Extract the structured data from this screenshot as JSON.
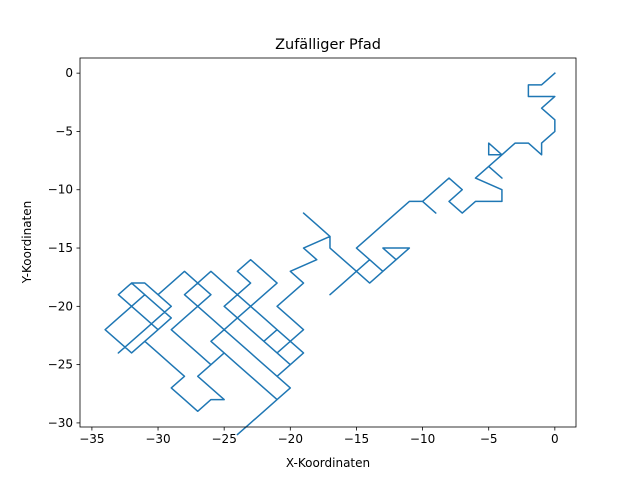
{
  "chart_data": {
    "type": "line",
    "title": "Zufälliger Pfad",
    "xlabel": "X-Koordinaten",
    "ylabel": "Y-Koordinaten",
    "xlim": [
      -35.9,
      1.6
    ],
    "ylim": [
      -30.35,
      1.3
    ],
    "xticks": [
      -35,
      -30,
      -25,
      -20,
      -15,
      -10,
      -5,
      0
    ],
    "yticks": [
      0,
      -5,
      -10,
      -15,
      -20,
      -25,
      -30
    ],
    "grid": false,
    "line_color": "#1f77b4",
    "series": [
      {
        "x": [
          0,
          -1,
          -2,
          -2,
          0,
          -1,
          0,
          0,
          -1,
          -1,
          -2,
          -3,
          -4,
          -5,
          -5,
          -4,
          -5,
          -4,
          -5,
          -6,
          -4,
          -4,
          -6,
          -7,
          -8,
          -7,
          -8,
          -9,
          -10,
          -9,
          -10,
          -11,
          -12,
          -13,
          -14,
          -15,
          -14,
          -13,
          -12,
          -11,
          -13,
          -12,
          -13,
          -14,
          -15,
          -14,
          -15,
          -16,
          -17,
          -16,
          -15,
          -16,
          -17,
          -17,
          -18,
          -19,
          -18,
          -17,
          -19,
          -18,
          -20,
          -19,
          -20,
          -21,
          -20,
          -19,
          -20,
          -21,
          -22,
          -21,
          -22,
          -23,
          -22,
          -21,
          -22,
          -23,
          -24,
          -23,
          -24,
          -25,
          -24,
          -23,
          -22,
          -21,
          -20,
          -21,
          -22,
          -23,
          -24,
          -25,
          -24,
          -23,
          -24,
          -25,
          -26,
          -27,
          -28,
          -27,
          -26,
          -25,
          -26,
          -25,
          -26,
          -27,
          -28,
          -29,
          -28,
          -27,
          -26,
          -27,
          -28,
          -29,
          -30,
          -29,
          -30,
          -31,
          -32,
          -33,
          -32,
          -31,
          -30,
          -29,
          -30,
          -31,
          -32,
          -33,
          -32,
          -31,
          -30,
          -31,
          -32,
          -33,
          -34,
          -33,
          -32,
          -31,
          -32,
          -31,
          -30,
          -29,
          -30,
          -31,
          -30,
          -29,
          -28,
          -29,
          -28,
          -27,
          -26,
          -25,
          -26,
          -27,
          -26,
          -25,
          -24,
          -23,
          -22,
          -21,
          -22,
          -23,
          -24,
          -23,
          -22,
          -21,
          -20,
          -21,
          -20,
          -19,
          -20,
          -21,
          -22,
          -23,
          -24,
          -25
        ],
        "y": [
          0,
          -1,
          -1,
          -2,
          -2,
          -3,
          -4,
          -5,
          -6,
          -7,
          -6,
          -6,
          -7,
          -6,
          -7,
          -7,
          -8,
          -9,
          -8,
          -9,
          -10,
          -11,
          -11,
          -12,
          -11,
          -10,
          -9,
          -10,
          -11,
          -12,
          -11,
          -11,
          -12,
          -13,
          -14,
          -15,
          -16,
          -17,
          -16,
          -15,
          -15,
          -16,
          -17,
          -18,
          -17,
          -16,
          -17,
          -18,
          -19,
          -18,
          -17,
          -16,
          -15,
          -14,
          -13,
          -12,
          -13,
          -14,
          -15,
          -16,
          -17,
          -18,
          -19,
          -20,
          -21,
          -22,
          -23,
          -24,
          -23,
          -22,
          -21,
          -20,
          -19,
          -18,
          -17,
          -16,
          -17,
          -18,
          -19,
          -20,
          -21,
          -22,
          -23,
          -24,
          -25,
          -26,
          -25,
          -24,
          -23,
          -22,
          -21,
          -20,
          -19,
          -18,
          -17,
          -18,
          -19,
          -20,
          -21,
          -22,
          -23,
          -24,
          -25,
          -24,
          -23,
          -22,
          -21,
          -20,
          -19,
          -18,
          -17,
          -18,
          -19,
          -20,
          -21,
          -22,
          -23,
          -24,
          -23,
          -22,
          -21,
          -20,
          -19,
          -18,
          -18,
          -19,
          -20,
          -21,
          -22,
          -23,
          -24,
          -23,
          -22,
          -21,
          -20,
          -19,
          -18,
          -19,
          -20,
          -21,
          -22,
          -23,
          -24,
          -25,
          -26,
          -27,
          -28,
          -29,
          -28,
          -28,
          -27,
          -26,
          -25,
          -24,
          -25,
          -26,
          -27,
          -28,
          -29,
          -30,
          -31,
          -30,
          -29,
          -28,
          -27,
          -26,
          -25,
          -24,
          -23,
          -22,
          -21,
          -20,
          -19,
          -18
        ]
      }
    ]
  }
}
